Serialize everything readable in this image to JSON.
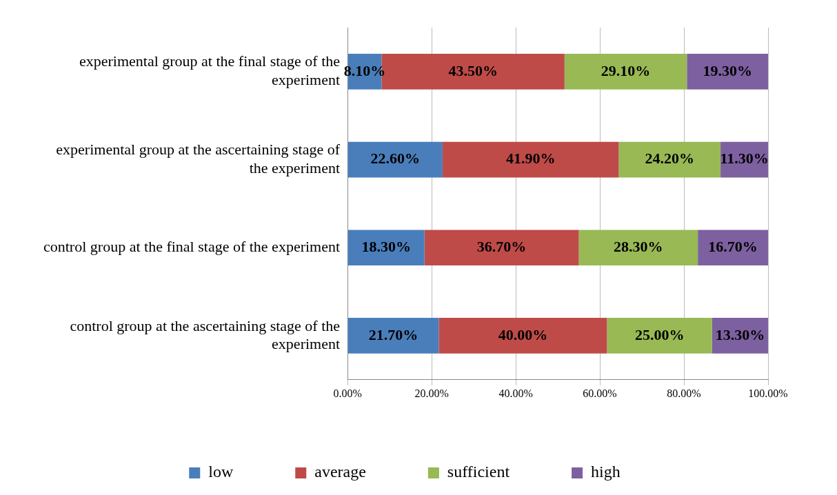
{
  "chart_data": {
    "type": "bar",
    "orientation": "horizontal",
    "stacked": true,
    "categories": [
      "experimental group at the final stage of the experiment",
      "experimental group at the ascertaining stage of the experiment",
      "control group at the final stage of the experiment",
      "control group at the ascertaining stage of the experiment"
    ],
    "series": [
      {
        "name": "low",
        "color": "#4a7ebb",
        "values": [
          8.1,
          22.6,
          18.3,
          21.7
        ],
        "value_labels": [
          "8.10%",
          "22.60%",
          "18.30%",
          "21.70%"
        ]
      },
      {
        "name": "average",
        "color": "#be4b48",
        "values": [
          43.5,
          41.9,
          36.7,
          40.0
        ],
        "value_labels": [
          "43.50%",
          "41.90%",
          "36.70%",
          "40.00%"
        ]
      },
      {
        "name": "sufficient",
        "color": "#98b954",
        "values": [
          29.1,
          24.2,
          28.3,
          25.0
        ],
        "value_labels": [
          "29.10%",
          "24.20%",
          "28.30%",
          "25.00%"
        ]
      },
      {
        "name": "high",
        "color": "#7d60a0",
        "values": [
          19.3,
          11.3,
          16.7,
          13.3
        ],
        "value_labels": [
          "19.30%",
          "11.30%",
          "16.70%",
          "13.30%"
        ]
      }
    ],
    "xlim": [
      0,
      100
    ],
    "xticks": [
      {
        "value": 0,
        "label": "0.00%"
      },
      {
        "value": 20,
        "label": "20.00%"
      },
      {
        "value": 40,
        "label": "40.00%"
      },
      {
        "value": 60,
        "label": "60.00%"
      },
      {
        "value": 80,
        "label": "80.00%"
      },
      {
        "value": 100,
        "label": "100.00%"
      }
    ],
    "grid": "x",
    "legend": "bottom"
  }
}
